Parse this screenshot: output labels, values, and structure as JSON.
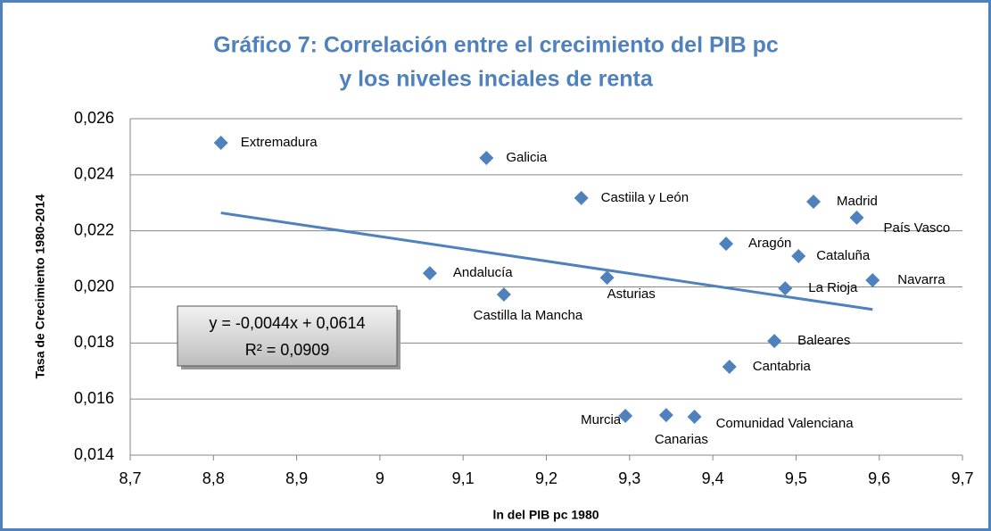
{
  "chart_data": {
    "type": "scatter",
    "title": [
      "Gráfico 7: Correlación entre el crecimiento del PIB pc",
      "y los niveles inciales de renta"
    ],
    "x_label": "ln del PIB pc 1980",
    "y_label": "Tasa de Crecimiento 1980-2014",
    "color": "#4f81bd",
    "point_labels": [
      "Extremadura",
      "Galicia",
      "Castiila y León",
      "Madrid",
      "País Vasco",
      "Aragón",
      "Cataluña",
      "Andalucía",
      "Asturias",
      "Navarra",
      "La Rioja",
      "Castilla la Mancha",
      "Baleares",
      "Cantabria",
      "Murcia",
      "Canarias",
      "Comunidad Valenciana"
    ],
    "x": [
      8.809,
      9.128,
      9.242,
      9.521,
      9.573,
      9.416,
      9.503,
      9.06,
      9.273,
      9.592,
      9.487,
      9.149,
      9.474,
      9.42,
      9.295,
      9.344,
      9.378
    ],
    "values": [
      0.02514,
      0.0246,
      0.02317,
      0.02304,
      0.02247,
      0.02154,
      0.0211,
      0.02049,
      0.02033,
      0.02024,
      0.01995,
      0.01973,
      0.01807,
      0.01715,
      0.0154,
      0.01543,
      0.01537
    ],
    "trendline": {
      "label": "y = -0,0044x + 0,0614",
      "r2_label": "R² = 0,0909",
      "slope": -0.0044,
      "intercept": 0.0614,
      "color": "#4f81bd"
    },
    "xlim": [
      8.7,
      9.7
    ],
    "xticks": [
      {
        "value": 8.7,
        "label": "8,7"
      },
      {
        "value": 8.8,
        "label": "8,8"
      },
      {
        "value": 8.9,
        "label": "8,9"
      },
      9,
      {
        "value": 9.1,
        "label": "9,1"
      },
      {
        "value": 9.2,
        "label": "9,2"
      },
      {
        "value": 9.3,
        "label": "9,3"
      },
      {
        "value": 9.4,
        "label": "9,4"
      },
      {
        "value": 9.5,
        "label": "9,5"
      },
      {
        "value": 9.6,
        "label": "9,6"
      },
      {
        "value": 9.7,
        "label": "9,7"
      }
    ],
    "ylim": [
      0.014,
      0.026
    ],
    "yticks": [
      {
        "value": 0.014,
        "label": "0,014"
      },
      {
        "value": 0.016,
        "label": "0,016"
      },
      {
        "value": 0.018,
        "label": "0,018"
      },
      {
        "value": 0.02,
        "label": "0,020"
      },
      {
        "value": 0.022,
        "label": "0,022"
      },
      {
        "value": 0.024,
        "label": "0,024"
      },
      {
        "value": 0.026,
        "label": "0,026"
      }
    ],
    "grid": true
  }
}
